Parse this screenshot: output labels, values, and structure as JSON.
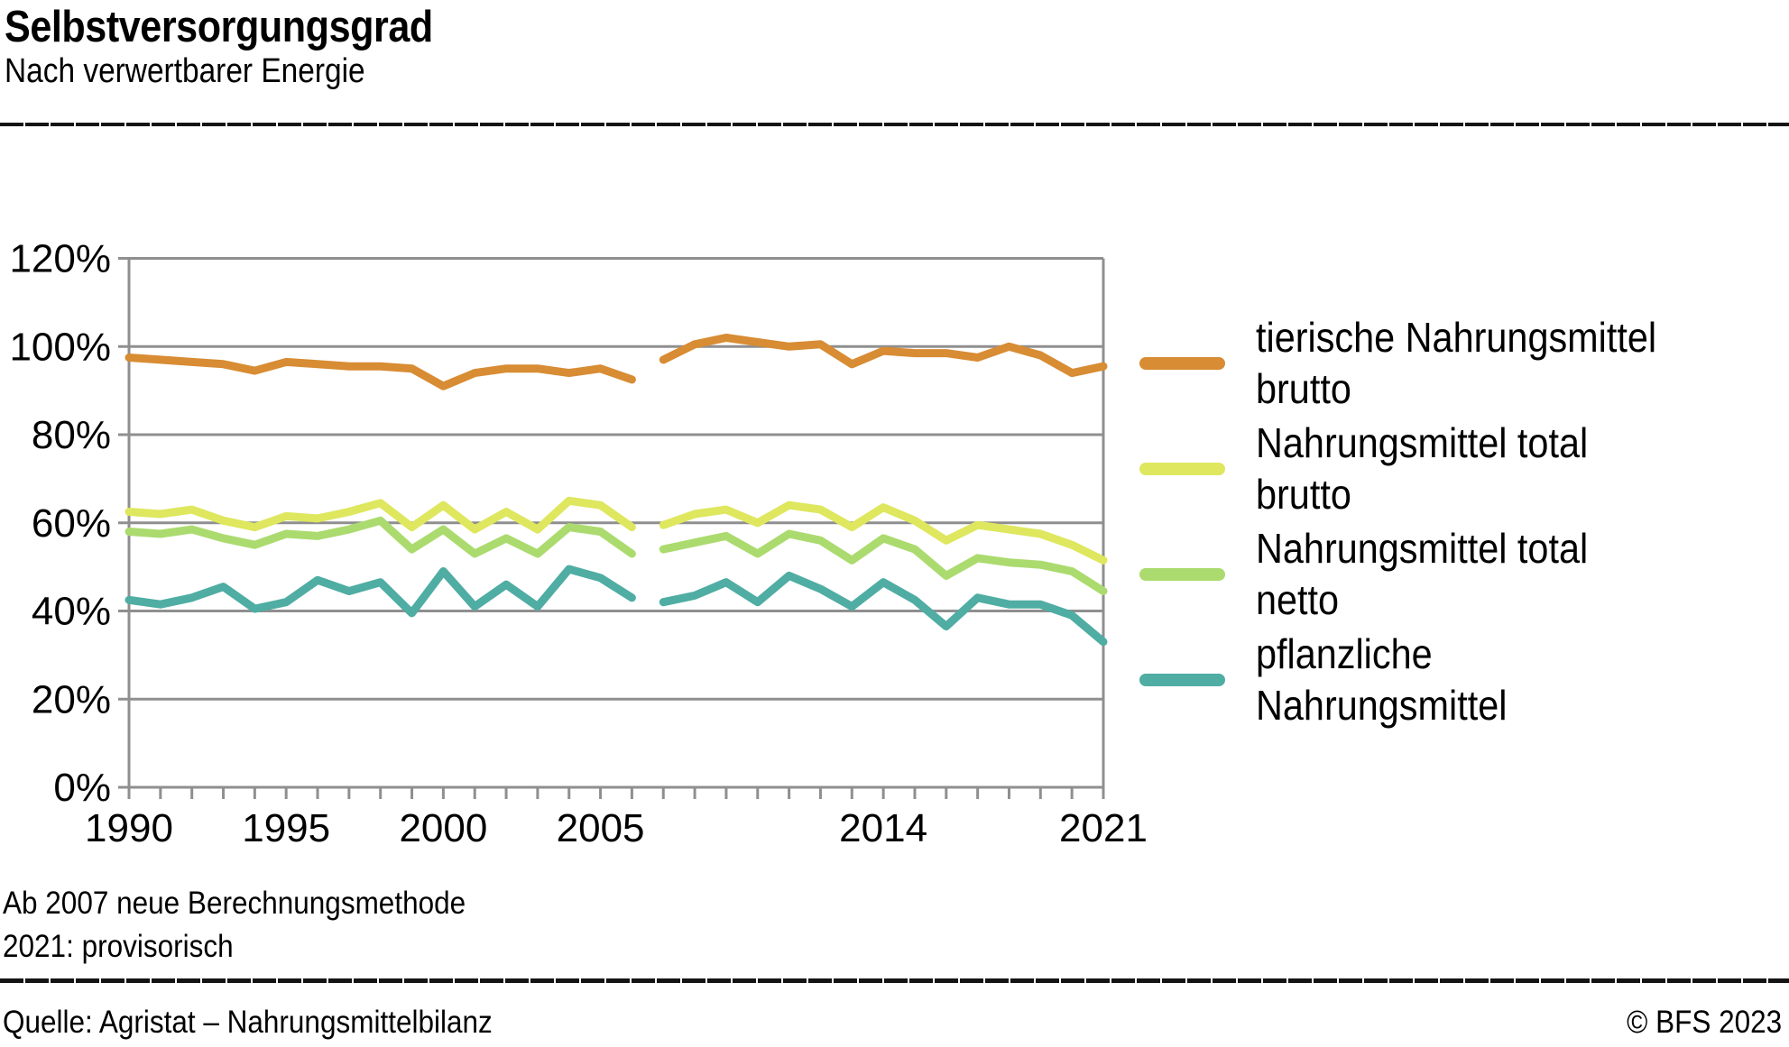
{
  "header": {
    "title": "Selbstversorgungsgrad",
    "subtitle": "Nach verwertbarer Energie"
  },
  "footnotes": {
    "line1": "Ab 2007 neue Berechnungsmethode",
    "line2": "2021: provisorisch"
  },
  "footer": {
    "source": "Quelle: Agristat – Nahrungsmittelbilanz",
    "copyright": "© BFS 2023"
  },
  "chart_data": {
    "type": "line",
    "title": "Selbstversorgungsgrad",
    "subtitle": "Nach verwertbarer Energie",
    "unit": "%",
    "ylim": [
      0,
      120
    ],
    "y_ticks": [
      0,
      20,
      40,
      60,
      80,
      100,
      120
    ],
    "y_tick_labels": [
      "0%",
      "20%",
      "40%",
      "60%",
      "80%",
      "100%",
      "120%"
    ],
    "years": [
      1990,
      1991,
      1992,
      1993,
      1994,
      1995,
      1996,
      1997,
      1998,
      1999,
      2000,
      2001,
      2002,
      2003,
      2004,
      2005,
      2006,
      2007,
      2008,
      2009,
      2010,
      2011,
      2012,
      2013,
      2014,
      2015,
      2016,
      2017,
      2018,
      2019,
      2020,
      2021
    ],
    "x_tick_labels": [
      {
        "year": 1990,
        "label": "1990"
      },
      {
        "year": 1995,
        "label": "1995"
      },
      {
        "year": 2000,
        "label": "2000"
      },
      {
        "year": 2005,
        "label": "2005"
      },
      {
        "year": 2014,
        "label": "2014"
      },
      {
        "year": 2021,
        "label": "2021"
      }
    ],
    "method_break_between_years": [
      2006,
      2007
    ],
    "grid": "horizontal",
    "legend_position": "right",
    "axis_color": "#8f8f8f",
    "series": [
      {
        "name": "tierische Nahrungsmittel brutto",
        "legend_line1": "tierische Nahrungsmittel",
        "legend_line2": "brutto",
        "color": "#D88C33",
        "values": [
          97.5,
          97,
          96.5,
          96,
          94.5,
          96.5,
          96,
          95.5,
          95.5,
          95,
          91,
          94,
          95,
          95,
          94,
          95,
          92.5,
          97,
          100.5,
          102,
          101,
          100,
          100.5,
          96,
          99,
          98.5,
          98.5,
          97.5,
          100,
          98,
          94,
          95.5
        ]
      },
      {
        "name": "Nahrungsmittel total brutto",
        "legend_line1": "Nahrungsmittel total",
        "legend_line2": "brutto",
        "color": "#DEE75E",
        "values": [
          62.5,
          62,
          63,
          60.5,
          59,
          61.5,
          61,
          62.5,
          64.5,
          59,
          64,
          58.5,
          62.5,
          58.5,
          65,
          64,
          59,
          59.5,
          62,
          63,
          60,
          64,
          63,
          59,
          63.5,
          60.5,
          56,
          59.5,
          58.5,
          57.5,
          55,
          51.5
        ]
      },
      {
        "name": "Nahrungsmittel total netto",
        "legend_line1": "Nahrungsmittel total",
        "legend_line2": "netto",
        "color": "#ABDB6E",
        "values": [
          58,
          57.5,
          58.5,
          56.5,
          55,
          57.5,
          57,
          58.5,
          60.5,
          54,
          58.5,
          53,
          56.5,
          53,
          59,
          58,
          53,
          54,
          55.5,
          57,
          53,
          57.5,
          56,
          51.5,
          56.5,
          54,
          48,
          52,
          51,
          50.5,
          49,
          44.5
        ]
      },
      {
        "name": "pflanzliche Nahrungsmittel",
        "legend_line1": "pflanzliche",
        "legend_line2": "Nahrungsmittel",
        "color": "#4FADA3",
        "values": [
          42.5,
          41.5,
          43,
          45.5,
          40.5,
          42,
          47,
          44.5,
          46.5,
          39.5,
          49,
          41,
          46,
          41,
          49.5,
          47.5,
          43,
          42,
          43.5,
          46.5,
          42,
          48,
          45,
          41,
          46.5,
          42.5,
          36.5,
          43,
          41.5,
          41.5,
          39,
          33
        ]
      }
    ]
  }
}
